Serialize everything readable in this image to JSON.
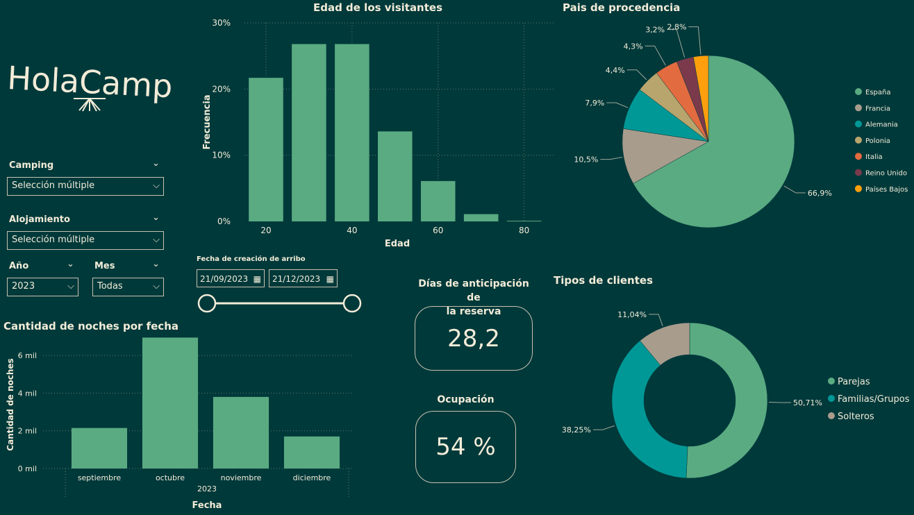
{
  "logo": {
    "text": "HolaCamp"
  },
  "filters": {
    "camping": {
      "label": "Camping",
      "value": "Selección múltiple"
    },
    "alojamiento": {
      "label": "Alojamiento",
      "value": "Selección múltiple"
    },
    "anio": {
      "label": "Año",
      "value": "2023"
    },
    "mes": {
      "label": "Mes",
      "value": "Todas"
    },
    "fecha": {
      "label": "Fecha de creación de arribo",
      "start": "21/09/2023",
      "end": "21/12/2023"
    }
  },
  "kpis": {
    "anticipacion": {
      "label_line1": "Días de anticipación de",
      "label_line2": "la reserva",
      "value": "28,2"
    },
    "ocupacion": {
      "label": "Ocupación",
      "value": "54 %"
    }
  },
  "colors": {
    "bg": "#00393a",
    "green": "#5aab82",
    "teal": "#009896",
    "grey": "#a89c8c",
    "olive": "#b8a56e",
    "orange": "#e36b40",
    "wine": "#7a3a4c",
    "amber": "#ff9f0e"
  },
  "chart_data": [
    {
      "id": "edad",
      "type": "bar",
      "title": "Edad de los visitantes",
      "xlabel": "Edad",
      "ylabel": "Frecuencia",
      "x_ticks": [
        "20",
        "40",
        "60",
        "80"
      ],
      "y_ticks": [
        "30%",
        "20%",
        "10%",
        "0%"
      ],
      "ylim": [
        0,
        30
      ],
      "xlim": [
        15,
        87
      ],
      "bins": [
        {
          "x": 20,
          "value": 21.7
        },
        {
          "x": 30,
          "value": 26.8
        },
        {
          "x": 40,
          "value": 26.8
        },
        {
          "x": 50,
          "value": 13.6
        },
        {
          "x": 60,
          "value": 6.1
        },
        {
          "x": 70,
          "value": 1.1
        },
        {
          "x": 80,
          "value": 0.1
        }
      ]
    },
    {
      "id": "pais",
      "type": "pie",
      "title": "Pais de procedencia",
      "slices": [
        {
          "name": "España",
          "value": 66.9,
          "label": "66,9%",
          "color": "#5aab82"
        },
        {
          "name": "Francia",
          "value": 10.5,
          "label": "10,5%",
          "color": "#a89c8c"
        },
        {
          "name": "Alemania",
          "value": 7.9,
          "label": "7,9%",
          "color": "#009896"
        },
        {
          "name": "Polonia",
          "value": 4.4,
          "label": "4,4%",
          "color": "#b8a56e"
        },
        {
          "name": "Italia",
          "value": 4.3,
          "label": "4,3%",
          "color": "#e36b40"
        },
        {
          "name": "Reino Unido",
          "value": 3.2,
          "label": "3,2%",
          "color": "#7a3a4c"
        },
        {
          "name": "Países Bajos",
          "value": 2.8,
          "label": "2,8%",
          "color": "#ff9f0e"
        }
      ]
    },
    {
      "id": "noches",
      "type": "bar",
      "title": "Cantidad de noches por fecha",
      "xlabel": "Fecha",
      "ylabel": "Cantidad de noches",
      "year_label": "2023",
      "y_ticks": [
        "6 mil",
        "4 mil",
        "2 mil",
        "0 mil"
      ],
      "ylim": [
        0,
        7000
      ],
      "categories": [
        "septiembre",
        "octubre",
        "noviembre",
        "diciembre"
      ],
      "values": [
        2150,
        6950,
        3800,
        1700
      ]
    },
    {
      "id": "clientes",
      "type": "pie",
      "title": "Tipos de clientes",
      "slices": [
        {
          "name": "Parejas",
          "value": 50.71,
          "label": "50,71%",
          "color": "#5aab82"
        },
        {
          "name": "Familias/Grupos",
          "value": 38.25,
          "label": "38,25%",
          "color": "#009896"
        },
        {
          "name": "Solteros",
          "value": 11.04,
          "label": "11,04%",
          "color": "#a89c8c"
        }
      ]
    }
  ]
}
